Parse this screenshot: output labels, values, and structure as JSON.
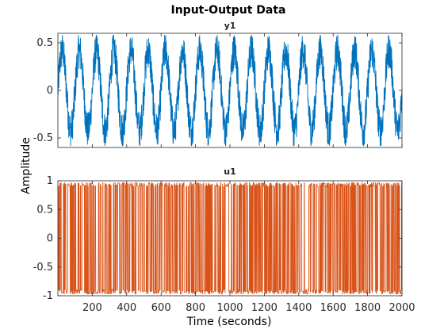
{
  "chart_data": {
    "type": "line",
    "title": "Input-Output Data",
    "xlabel": "Time (seconds)",
    "ylabel": "Amplitude",
    "x_range": [
      0,
      2000
    ],
    "x_ticks": [
      200,
      400,
      600,
      800,
      1000,
      1200,
      1400,
      1600,
      1800,
      2000
    ],
    "x_tick_labels": [
      "200",
      "400",
      "600",
      "800",
      "1000",
      "1200",
      "1400",
      "1600",
      "1800",
      "2000"
    ],
    "grid": false,
    "subplots": [
      {
        "name": "y1",
        "color": "#0072BD",
        "ylim": [
          -0.6,
          0.6
        ],
        "y_ticks": [
          0.5,
          0,
          -0.5
        ],
        "y_tick_labels": [
          "0.5",
          "0",
          "-0.5"
        ],
        "signal": "periodic oscillation with noise",
        "approx_period_seconds": 100,
        "approx_range": [
          -0.58,
          0.58
        ]
      },
      {
        "name": "u1",
        "color": "#D95319",
        "ylim": [
          -1,
          1
        ],
        "y_ticks": [
          1,
          0.5,
          0,
          -0.5,
          -1
        ],
        "y_tick_labels": [
          "1",
          "0.5",
          "0",
          "-0.5",
          "-1"
        ],
        "signal": "random binary-like excitation",
        "approx_range": [
          -0.97,
          0.97
        ]
      }
    ]
  }
}
